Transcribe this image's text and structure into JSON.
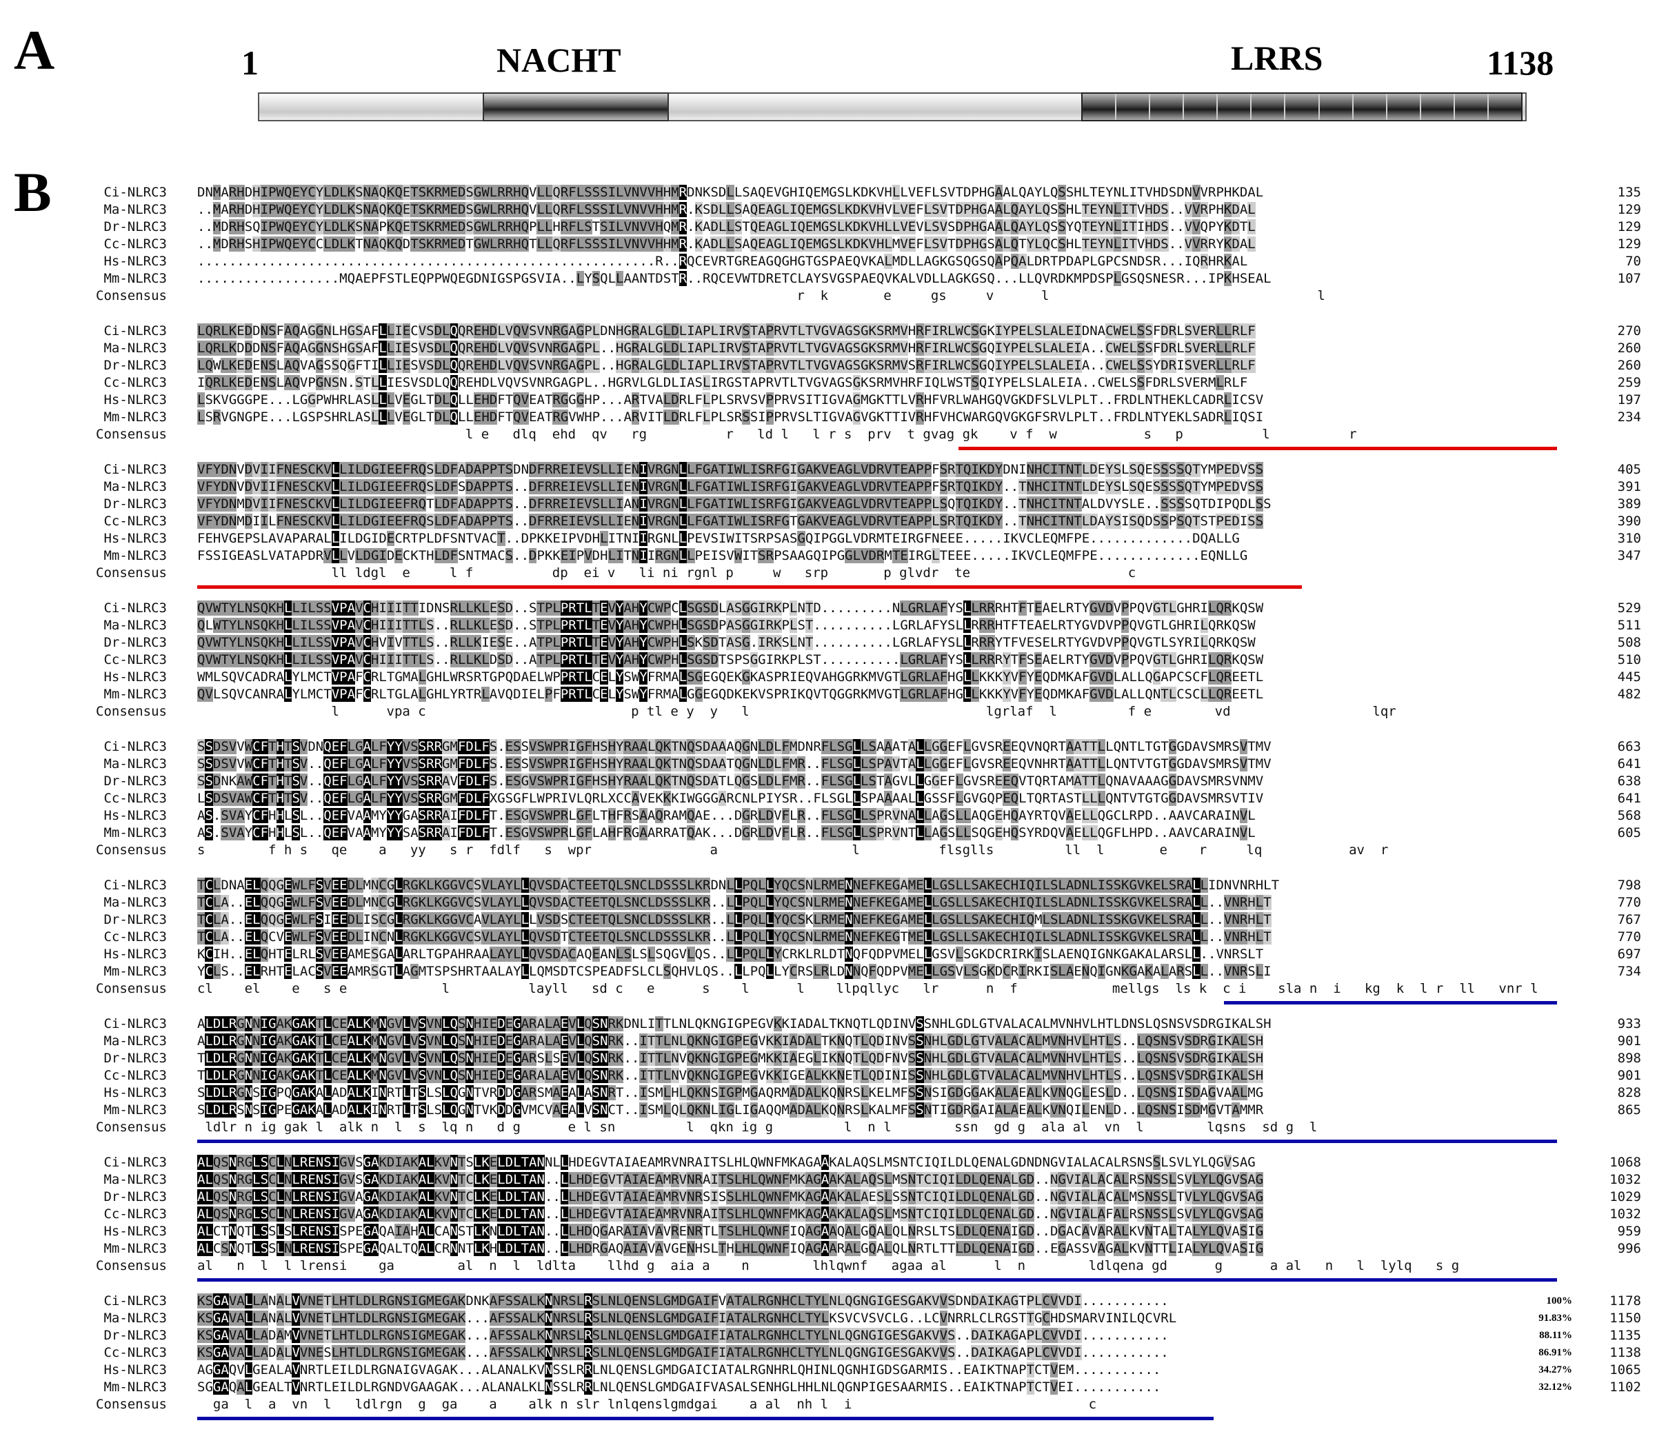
{
  "panel_a": {
    "letter": "A",
    "start_label": "1",
    "end_label": "1138",
    "domains": [
      {
        "name": "NACHT"
      },
      {
        "name": "LRRS",
        "repeat_count": 13
      }
    ]
  },
  "panel_b": {
    "letter": "B",
    "consensus_label": "Consensus",
    "blocks": [
      {
        "rows": [
          {
            "name": "Ci-NLRC3",
            "seq": "DNMARHDHIPWQEYCYLDLKSNAQKQETSKRMEDSGWLRRHQVLLQRFLSSSILVNVVHHMRDNKSDLLSAQEVGHIQEMGSLKDKVHLLVEFLSVTDPHGAALQAYLQSSHLTEYNLITVHDSDNVVRPHKDAL",
            "end": "135"
          },
          {
            "name": "Ma-NLRC3",
            "seq": "..MARHDHIPWQEYCYLDLKSNAQKQETSKRMEDSGWLRRHQVLLQRFLSSSILVNVVHHMR.KSDLLSAQEAGLIQEMGSLKDKVHVLVEFLSVTDPHGAALQAYLQSSHLTEYNLITVHDS..VVRPHKDAL",
            "end": "129"
          },
          {
            "name": "Dr-NLRC3",
            "seq": "..MDRHSQIPWQEYCYLDLKSNAPKQETSKRMEDSGWLRRHQPLLHRFLSTSILVNVVHQMR.KADLLSTQEAGLIQEMGSLKDKVHLLVEVLSVSDPHGAALQAYLQSSYQTEYNLITIHDS..VVQPYKDTL",
            "end": "129"
          },
          {
            "name": "Cc-NLRC3",
            "seq": "..MDRHSHIPWQEYCCLDLKTNAQKQDTSKRMEDTGWLRRHQTLLQRFLSSSILVNVVHHMR.KADLLSAQEAGLIQEMGSLKDKVHLMVEFLSVTDPHGSALQTYLQCSHLTEYNLITVHDS..VVRRYKDAL",
            "end": "129"
          },
          {
            "name": "Hs-NLRC3",
            "seq": "..........................................................R..RQCEVRTGREAGQGHGTGSPAEQVKALMDLLAGKGSQGSQAPQALDRTPDAPLGPCSNDSR...IQRHRKAL",
            "end": "70"
          },
          {
            "name": "Mm-NLRC3",
            "seq": "..................MQAEPFSTLEQPPWQEGDNIGSPGSVIA..LYSQLLAANTDSTR..RQCEVWTDRETCLAYSVGSPAEQVKALVDLLAGKGSQ...LLQVRDKMPDSPLGSQSNESR...IPKHSEAL",
            "end": "107"
          }
        ],
        "consensus": "                                                                            r  k       e     gs     v      l                                  l"
      },
      {
        "rows": [
          {
            "name": "Ci-NLRC3",
            "seq": "LQRLKEDDNSFAQAGGNLHGSAFLLIECVSDLQQREHDLVQVSVNRGAGPLDNHGRALGLDLIAPLIRVSTAPRVTLTVGVAGSGKSRMVHRFIRLWCSGKIYPELSLALEIDNACWELSSFDRLSVERLLRLF",
            "end": "270"
          },
          {
            "name": "Ma-NLRC3",
            "seq": "LQRLKDDDNSFAQAGGNSHGSAFLLIESVSDLQQREHDLVQVSVNRGAGPL..HGRALGLDLIAPLIRVSTAPRVTLTVGVAGSGKSRMVHRFIRLWCSGQIYPELSLALEIA..CWELSSFDRLSVERLLRLF",
            "end": "260"
          },
          {
            "name": "Dr-NLRC3",
            "seq": "LQWLKEDENSLAQVAGSSQGFTILLIESVSDLQQREHDLVQVSVNRGAGPL..HGRALGLDLIAPLIRVSTAPRVTLTVGVAGSGKSRMVSRFIRLWCSGQIYPELSLALEIA..CWELSSYDRISVERLLRLF",
            "end": "260"
          },
          {
            "name": "Cc-NLRC3",
            "seq": "IQRLKEDENSLAQVPGNSN.STLLIESVSDLQQREHDLVQVSVNRGAGPL..HGRVLGLDLIASLIRGSTAPRVTLTVGVAGSGKSRMVHRFIQLWSTSQIYPELSLALEIA..CWELSSFDRLSVERMLRLF",
            "end": "259"
          },
          {
            "name": "Hs-NLRC3",
            "seq": "LSKVGGGPE...LGGPWHRLASLLLVEGLTDLQLLEHDFTQVEATRGGGHP...ARTVALDRLFLPLSRVSVPPRVSITIGVAGMGKTTLVRHFVRLWAHGQVGKDFSLVLPLT..FRDLNTHEKLCADRLICSV",
            "end": "197"
          },
          {
            "name": "Mm-NLRC3",
            "seq": "LSRVGNGPE...LGSPSHRLASLLLVEGLTDLQLLEHDFTQVEATRGVWHP...ARVITLDRLFLPLSRSSIPPRVSLTIGVAGVGKTTIVRHFVHCWARGQVGKGFSRVLPLT..FRDLNTYEKLSADRLIQSI",
            "end": "234"
          }
        ],
        "consensus": "                                  l e   dlq  ehd  qv   rg          r   ld l   l r s  prv  t gvag gk    v f  w           s   p          l          r"
      },
      {
        "rows": [
          {
            "name": "Ci-NLRC3",
            "seq": "VFYDNVDVIIFNESCKVLLILDGIEEFRQSLDFADAPPTSDNDFRREIEVSLLIENIVRGNLLFGATIWLISRFGIGAKVEAGLVDRVTEAPPFSRTQIKDYDNINHCITNTLDEYSLSQESSSSQTYMPEDVSS",
            "end": "405"
          },
          {
            "name": "Ma-NLRC3",
            "seq": "VFYDNVDVIIFNESCKVLLILDGIEEFRQSLDFSDAPPTS..DFRREIEVSLLIENIVRGNLLFGATIWLISRFGIGAKVEAGLVDRVTEAPPFSRTQIKDY..TNHCITNTLDEYSLSQESSSSQTYMPEDVSS",
            "end": "391"
          },
          {
            "name": "Dr-NLRC3",
            "seq": "VFYDNMDVIIFNESCKVLLILDGIEEFRQTLDFADAPPTS..DFRREIEVSLLIANIVRGNLLFGATIWLISRFGIGAKVEAGLVDRVTEAPPLSQTQIKDY..TNHCITNTALDVYSLE..SSSSQTDIPQDLSS",
            "end": "389"
          },
          {
            "name": "Cc-NLRC3",
            "seq": "VFYDNMDIILFNESCKVLLILDGIEEFRQSLDFADAPPTS..DFRREIEVSLLIENIVRGNLLFGATIWLISRFGTGAKVEAGLVDRVTEAPPLSRTQIKDY..TNHCITNTLDAYSISQDSSPSQTSTPEDISS",
            "end": "390"
          },
          {
            "name": "Hs-NLRC3",
            "seq": "FEHVGEPSLAVAPARALLILDGIDECRTPLDFSNTVACT..DPKKEIPVDHLITNIIRGNLLPEVSIWITSRPSASGQIPGGLVDRMTEIRGFNEEE.....IKVCLEQMFPE.............DQALLG",
            "end": "310"
          },
          {
            "name": "Mm-NLRC3",
            "seq": "FSSIGEASLVATAPDRVLLVLDGIDECKTHLDFSNTMACS..DPKKEIPVDHLITNIIRGNLLPEISVWITSRPSAAGQIPGGLVDRMTEIRGLTEEE.....IKVCLEQMFPE.............EQNLLG",
            "end": "347"
          }
        ],
        "consensus": "                 ll ldgl  e     l f          dp  ei v   li ni rgnl p     w   srp       p glvdr  te                    c"
      },
      {
        "rows": [
          {
            "name": "Ci-NLRC3",
            "seq": "QVWTYLNSQKHLLILSSVPAVCHIIITTIDNSRLLKLESD..STPLPRTLTEVYAHYCWPCLSGSDLASGGIRKPLNTD.........NLGRLAFYSLLRRRHTFTEAELRTYGVDVPPQVGTLGHRILQRKQSW",
            "end": "529"
          },
          {
            "name": "Ma-NLRC3",
            "seq": "QLWTYLNSQKHLLILSSVPAVCHIIITTLS..RLLKLESD..STPLPRTLTEVYAHYCWPHLSGSDPASGGIRKPLST..........LGRLAFYSLLRRRHTFTEAELRTYGVDVPPQVGTLGHRILQRKQSW",
            "end": "511"
          },
          {
            "name": "Dr-NLRC3",
            "seq": "QVWTYLNSQKHLLILSSVPAVCHVIVTTLS..RLLKIESE..ATPLPRTLTEVYAHYCWPHLSKSDTASG.IRKSLNT..........LGRLAFYSLLRRRYTFVESELRTYGVDVPPQVGTLSYRILQRKQSW",
            "end": "508"
          },
          {
            "name": "Cc-NLRC3",
            "seq": "QVWTYLNSQKHLLILSSVPAVCHIIITTLS..RLLKLDSD..ATPLPRTLTEVYAHYCWPHLSGSDTSPSGGIRKPLST..........LGRLAFYSLLRRRYTFSEAELRTYGVDVPPQVGTLGHRILQRKQSW",
            "end": "510"
          },
          {
            "name": "Hs-NLRC3",
            "seq": "WMLSQVCADRALYLMCTVPAFCRLTGMALGHLWRSRTGPQDAELWPPRTLCELYSWYFRMALSGEGQEKGKASPRIEQVAHGGRKMVGTLGRLAFHGLLKKKYVFYEQDMKAFGVDLALLQGAPCSCFLQREETL",
            "end": "445"
          },
          {
            "name": "Mm-NLRC3",
            "seq": "QVLSQVCANRALYLMCTVPAFCRLTGLALGHLYRTRLAVQDIELPFPRTLCELYSWYFRMALGGEGQDKEKVSPRIKQVTQGGRKMVGTLGRLAFHGLLKKKYVFYEQDMKAFGVDLALLQNTLCSCLLQREETL",
            "end": "482"
          }
        ],
        "consensus": "                 l      vpa c                          p tl e y  y   l                              lgrlaf  l         f e        vd                  lqr"
      },
      {
        "rows": [
          {
            "name": "Ci-NLRC3",
            "seq": "SSDSVVWCFTHTSVDNQEFLGALFYYVSSRRGMFDLFS.ESSVSWPRIGFHSHYRAALQKTNQSDAAAQGNLDLFMDNRFLSGLLSAAATALLGGEFLGVSREEQVNQRTAATTLLQNTLTGTGGDAVSMRSVTMV",
            "end": "663"
          },
          {
            "name": "Ma-NLRC3",
            "seq": "SSDSVVWCFTHTSV..QEFLGALFYYVSSRRGMFDLFS.ESSVSWPRIGFHSHYRAALQKTNQSDAATQGNLDLFMR..FLSGLLSPAVTALLGGEFLGVSREEQVNHRTAATTLLQNTVTGTGGDAVSMRSVTMV",
            "end": "641"
          },
          {
            "name": "Dr-NLRC3",
            "seq": "SSDNKAWCFTHTSV..QEFLGALFYYVSSRRAVFDLFS.ESGVSWPRIGFHSHYRAALQKTNQSDATLQGSLDLFMR..FLSGLLSTAGVLLGGEFLGVSREEQVTQRTAMATTLQNAVAAAGGDAVSMRSVNMV",
            "end": "638"
          },
          {
            "name": "Cc-NLRC3",
            "seq": "LSDSVAWCFTHTSV..QEFLGALFYYVSSRRGMFDLFXGSGFLWPRIVLQRLXCCAVEKKKIWGGGARCNLPIYSR..FLSGLLSPAAAALLGSSFLGVGQPEQLTQRTASTLLLQNTVTGTGGDAVSMRSVTIV",
            "end": "641"
          },
          {
            "name": "Hs-NLRC3",
            "seq": "AS.SVAYCFHHLSL..QEFVAAMYYYGASRRAIFDLFT.ESGVSWPRLGFLTHFRSAAQRAMQAE...DGRLDVFLR..FLSGLLSPRVNALLAGSLLAQGEHQAYRTQVAELLQGCLRPD..AAVCARAINVL",
            "end": "568"
          },
          {
            "name": "Mm-NLRC3",
            "seq": "AS.SVAYCFHHLSL..QEFVAAMYYYSASRRAIFDLFT.ESGVSWPRLGFLAHFRGAARRATQAK...DGRLDVFLR..FLSGLLSPRVNTLLAGSLLSQGEHQSYRDQVAELLQGFLHPD..AAVCARAINVL",
            "end": "605"
          }
        ],
        "consensus": "s        f h s   qe    a   yy   s r  fdlf   s  wpr               a                 l          flsglls         ll  l       e    r     lq           av  r"
      },
      {
        "rows": [
          {
            "name": "Ci-NLRC3",
            "seq": "TCLDNAELQQGEWLFSVEEDLMNCGLRGKLKGGVCSVLAYLLQVSDACTEETQLSNCLDSSSLKRDNLLPQLLYQCSNLRMENNEFKEGAMELLGSLLSAKECHIQILSLADNLISSKGVKELSRALLIDNVNRHLT",
            "end": "798"
          },
          {
            "name": "Ma-NLRC3",
            "seq": "TCLA..ELQQGEWLFSVEEDLMNCGLRGKLKGGVCSVLAYLLQVSDACTEETQLSNCLDSSSLKR..LLPQLLYQCSNLRMENNEFKEGAMELLGSLLSAKECHIQILSLADNLISSKGVKELSRALL..VNRHLT",
            "end": "770"
          },
          {
            "name": "Dr-NLRC3",
            "seq": "TCLA..ELQQGEWLFSIEEDLISCGLRGKLKGGVCAVLAYLLLVSDSCTEETQLSNCLDSSSLKR..LLPQLLYQCSKLRMENNEFKEGAMELLGSLLSAKECHIQMLSLADNLISSKGVKELSRALL..VNRHLT",
            "end": "767"
          },
          {
            "name": "Cc-NLRC3",
            "seq": "TCLA..ELQCVEWLFSVEEDLINCNLRGKLKGGVCSVLAYLLQVSDTCTEETQLSNCLDSSSLKR..LLPQLLYQCSNLRMENNEFKEGTMELLGSLLSAKECHIQILSLADNLISSKGVKELSRALL..VNRHLT",
            "end": "770"
          },
          {
            "name": "Hs-NLRC3",
            "seq": "KCIH..ELQHTELRLSVEEAMESGALARLTGPAHRAALAYLLQVSDACAQEANLSLSLSQGVLQS..LLPQLLYCRKLRLDTNQFQDPVMELLGSVLSGKDCRIRKISLAENQIGNKGAKALARSLL..VNRSLT",
            "end": "697"
          },
          {
            "name": "Mm-NLRC3",
            "seq": "YCLS..ELRHTELACSVEEAMRSGTLAGMTSPSHRTAALAYLLQMSDTCSPEADFSLCLSQHVLQS..LLPQLLYCRSLRLDNNQFQDPVMELLGSVLSGKDCRIRKISLAENQIGNKGAKALARSLL..VNRSLI",
            "end": "734"
          }
        ],
        "consensus": "cl    el    e   s e            l          layll   sd c   e      s    l      l    llpqllyc   lr      n  f            mellgs  ls k  c i    sla n  i   kg  k  l r  ll   vnr l"
      },
      {
        "rows": [
          {
            "name": "Ci-NLRC3",
            "seq": "ALDLRGNNIGAKGAKTLCEALKMNGVLVSVNLQSNHIEDEGARALAEVLQSNRKDNLITTLNLQKNGIGPEGVKKIADALTKNQTLQDINVSSNHLGDLGTVALACALMVNHVLHTLDNSLQSNSVSDRGIKALSH",
            "end": "933"
          },
          {
            "name": "Ma-NLRC3",
            "seq": "ALDLRGNNIGAKGAKTLCEALKMNGVLVSVNLQSNHIEDEGARALAEVLQSNRK..ITTLNLQKNGIGPEGVKKIADALTKNQTLQDINVSSNHLGDLGTVALACALMVNHVLHTLS..LQSNSVSDRGIKALSH",
            "end": "901"
          },
          {
            "name": "Dr-NLRC3",
            "seq": "TLDLRGNNIGAKGAKTLCEALKMNGVLVSVNLQSNHIEDEGARSLSEVLQSNRK..ITTLNVQKNGIGPEGMKKIAEGLIKNQTLQDFNVSSNHLGDLGTVALACALMVNHVLHTLS..LQSNSVSDRGIKALSH",
            "end": "898"
          },
          {
            "name": "Cc-NLRC3",
            "seq": "TLDLRGNNIGAKGAKTLCEALKMNGVLVSVNLQSNHIEDEGARALAEVLQSNRK..ITTLNVQKNGIGPEGVKKIGEALKKNETLQDINISSNHLGDLGTVALACALMVNHVLHTLS..LQSNSVSDRGIKALSH",
            "end": "901"
          },
          {
            "name": "Hs-NLRC3",
            "seq": "SLDLRGNSIGPQGAKALADALKINRTLTSLSLQGNTVRDDGARSMAEALASNRT..ISMLHLQKNSIGPMGAQRMADALKQNRSLKELMFSSNSIGDGGAKALAEALKVNQGLESLD..LQSNSISDAGVAALMG",
            "end": "828"
          },
          {
            "name": "Mm-NLRC3",
            "seq": "SLDLRSNSIGPEGAKALADALKINRTLTSLSLQGNTVKDDGVMCVAEALVSNCT..ISMLQLQKNLIGLIGAQQMADALKQNRSLKALMFSSNTIGDRGAIALAEALKVNQILENLD..LQSNSISDMGVTAMMR",
            "end": "865"
          }
        ],
        "consensus": " ldlr n ig gak l  alk n  l  s  lq n   d g      e l sn         l  qkn ig g         l  n l        ssn  gd g  ala al  vn  l        lqsns  sd g  l"
      },
      {
        "rows": [
          {
            "name": "Ci-NLRC3",
            "seq": "ALQSNRGLSCLNLRENSIGVSGAKDIAKALKVNTSLKELDLTANNLLHDEGVTAIAEAMRVNRAITSLHLQWNFMKAGAAKALAQSLMSNTCIQILDLQENALGDNDNGVIALACALRSNSSLSVLYLQGVSAG",
            "end": "1068"
          },
          {
            "name": "Ma-NLRC3",
            "seq": "ALQSNRGLSCLNLRENSIGVSGAKDIAKALKVNTCLKELDLTAN..LLHDEGVTAIAEAMRVNRAITSLHLQWNFMKAGAAKALAQSLMSNTCIQILDLQENALGD..NGVIALACALRSNSSLSVLYLQGVSAG",
            "end": "1032"
          },
          {
            "name": "Dr-NLRC3",
            "seq": "ALQSNRGLSCLNLRENSIGVAGAKDIAKALKVNTCLKELDLTAN..LLHDEGVTAIAEAMRVNRSISSLHLQWNFMKAGAAKALAESLSSNTCIQILDLQENALGD..NGVIALACALMSNSSLTVLYLQGVSAG",
            "end": "1029"
          },
          {
            "name": "Cc-NLRC3",
            "seq": "ALQSNRGLSCLNLRENSIGVAGAKDIAKALKVNTCLKELDLTAN..LLHDEGVTAIAEAMRVNRAITSLHLQWNFMKAGAAKALAQSLMSNTCIQILDLQENALGD..NGVIALAFALRSNSSLSVLYLQGVSAG",
            "end": "1032"
          },
          {
            "name": "Hs-NLRC3",
            "seq": "ALCTNQTLSSLSLRENSISPEGAQAIAHALCANSTLKNLDLTAN..LLHDQGARAIAVAVRENRTLTSLHLQWNFIQAGAAQALGQALQLNRSLTSLDLQENAIGD..DGACAVARALKVNTALTALYLQVASIG",
            "end": "959"
          },
          {
            "name": "Mm-NLRC3",
            "seq": "ALCSNQTLSSLNLRENSISPEGAQALTQALCRNNTLKHLDLTAN..LLHDRGAQAIAVAVGENHSLTHLHLQWNFIQAGAARALGQALQLNRTLTTLDLQENAIGD..EGASSVAGALKVNTTLIALYLQVASIG",
            "end": "996"
          }
        ],
        "consensus": "al   n  l  l lrensi    ga        al  n  l  ldlta    llhd g  aia a    n        lhlqwnf   agaa al      l  n        ldlqena gd      g      a al   n   l  lylq   s g"
      },
      {
        "rows": [
          {
            "name": "Ci-NLRC3",
            "seq": "KSGAVALLANALVVNETLHTLDLRGNSIGMEGAKDNKAFSSALKNNRSLRSLNLQENSLGMDGAIFVATALRGNHCLTYLNLQGNGIGESGAKVVSDNDAIKAGTPLCVVDI...........",
            "end": "1178",
            "pct": "100%"
          },
          {
            "name": "Ma-NLRC3",
            "seq": "KSGAVALLANALVVNETLHTLDLRGNSIGMEGAK...AFSSALKNNRSLRSLNLQENSLGMDGAIFIATALRGNHCLTYLKSVCVSVCLG..LCVNRRLCLRGSTTGCHDSMARVINILQCVRL",
            "end": "1150",
            "pct": "91.83%"
          },
          {
            "name": "Dr-NLRC3",
            "seq": "KSGAVALLADAMVVNETLHTLDLRGNSIGMEGAK...AFSSALKNNRSLRSLNLQENSLGMDGAIFIATALRGNHCLTYLNLQGNGIGESGAKVVS..DAIKAGAPLCVVDI...........",
            "end": "1135",
            "pct": "88.11%"
          },
          {
            "name": "Cc-NLRC3",
            "seq": "KSGAVALLADALVVNESLHTLDLRGNSIGMEGAK...AFSSALKNNRSLRSLNLQENSLGMDGAIFIATALRGNHCLTYLNLQGNGIGESGAKVVS..DAIKAGAPLCVVDI...........",
            "end": "1138",
            "pct": "86.91%"
          },
          {
            "name": "Hs-NLRC3",
            "seq": "AGGAQVLGEALAVNRTLEILDLRGNAIGVAGAK...ALANALKVNSSLRRLNLQENSLGMDGAICIATALRGNHRLQHINLQGNHIGDSGARMIS..EAIKTNAPTCTVEM...........",
            "end": "1065",
            "pct": "34.27%"
          },
          {
            "name": "Mm-NLRC3",
            "seq": "SGGAQALGEALTVNRTLEILDLRGNDVGAAGAK...ALANALKLNSSLRRLNLQENSLGMDGAIFVASALSENHGLHHLNLQGNPIGESAARMIS..EAIKTNAPTCTVEI...........",
            "end": "1102",
            "pct": "32.12%"
          }
        ],
        "consensus": "  ga  l  a  vn  l   ldlrgn  g  ga    a    alk n slr lnlqenslgmdgai    a al  nh l  i                              c"
      }
    ]
  }
}
